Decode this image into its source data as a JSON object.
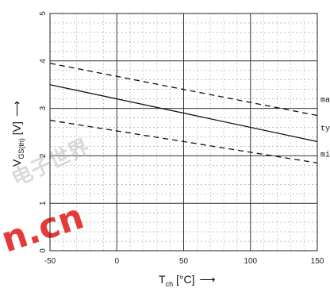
{
  "chart_data": {
    "type": "line",
    "xlabel": {
      "main": "T",
      "sub": "ch",
      "unit": " [°C]",
      "arrow": "⟶"
    },
    "ylabel": {
      "main": "V",
      "sub": "GS(th)",
      "unit": " [V]",
      "arrow": "⟶"
    },
    "xlim": [
      -50,
      150
    ],
    "ylim": [
      0,
      5
    ],
    "xticks": [
      "-50",
      "0",
      "50",
      "100",
      "150"
    ],
    "yticks": [
      "0",
      "1",
      "2",
      "3",
      "4",
      "5"
    ],
    "grid": true,
    "series": [
      {
        "name": "max",
        "style": "dashed",
        "x": [
          -50,
          150
        ],
        "y": [
          3.95,
          2.85
        ]
      },
      {
        "name": "typ",
        "style": "solid",
        "x": [
          -50,
          150
        ],
        "y": [
          3.5,
          2.3
        ]
      },
      {
        "name": "min",
        "style": "dashed",
        "x": [
          -50,
          150
        ],
        "y": [
          2.75,
          1.85
        ]
      }
    ],
    "series_labels": [
      "max",
      "typ",
      "min"
    ]
  },
  "watermark": {
    "line1": "电子世界",
    "line2": "n.cn"
  }
}
